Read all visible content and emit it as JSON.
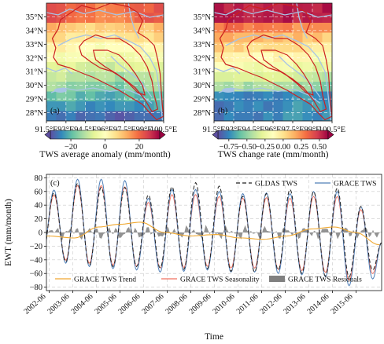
{
  "colors": {
    "gldas": "#222222",
    "grace": "#4f7fb8",
    "trend": "#f0a830",
    "seasonality": "#f07060",
    "residuals": "#808080",
    "boundary": "#cc2020",
    "river": "#a8c4e6",
    "grid": "#c8c8c8"
  },
  "chart_data": [
    {
      "type": "heatmap",
      "panel_label": "(a)",
      "x_ticks": [
        "91.5°E",
        "93°E",
        "94.5°E",
        "96°E",
        "97.5°E",
        "99°E",
        "100.5°E"
      ],
      "y_ticks": [
        "35°N",
        "34°N",
        "33°N",
        "32°N",
        "31°N",
        "30°N",
        "29°N",
        "28°N"
      ],
      "xlim": [
        91.5,
        100.5
      ],
      "ylim": [
        27.4,
        36.0
      ],
      "colormap": "Spectral_r",
      "colorbar": {
        "label": "TWS average anomaly (mm/month)",
        "ticks": [
          "−20",
          "0",
          "20"
        ],
        "range": [
          -32,
          32
        ],
        "extend": "both"
      }
    },
    {
      "type": "heatmap",
      "panel_label": "(b)",
      "x_ticks": [
        "91.5°E",
        "93°E",
        "94.5°E",
        "96°E",
        "97.5°E",
        "99°E",
        "100.5°E"
      ],
      "y_ticks": [
        "35°N",
        "34°N",
        "33°N",
        "32°N",
        "31°N",
        "30°N",
        "29°N",
        "28°N"
      ],
      "xlim": [
        91.5,
        100.5
      ],
      "ylim": [
        27.4,
        36.0
      ],
      "colormap": "Spectral_r",
      "colorbar": {
        "label": "TWS change rate (mm/month)",
        "ticks": [
          "−0.75",
          "−0.50",
          "−0.25",
          "0.00",
          "0.25",
          "0.50"
        ],
        "range": [
          -0.9,
          0.62
        ],
        "extend": "both"
      }
    },
    {
      "type": "line",
      "panel_label": "(c)",
      "xlabel": "Time",
      "ylabel": "EWT (mm/month)",
      "x_ticks": [
        "2002-06",
        "2003-06",
        "2004-06",
        "2005-06",
        "2006-06",
        "2007-06",
        "2008-06",
        "2009-06",
        "2010-06",
        "2011-06",
        "2012-06",
        "2013-06",
        "2014-06",
        "2015-06"
      ],
      "y_ticks": [
        -80,
        -60,
        -40,
        -20,
        0,
        20,
        40,
        60,
        80
      ],
      "xlim": [
        2002.3,
        2016.5
      ],
      "ylim": [
        -85,
        85
      ],
      "grid": true,
      "annual_peaks": {
        "years": [
          2002,
          2003,
          2004,
          2005,
          2006,
          2007,
          2008,
          2009,
          2010,
          2011,
          2012,
          2013,
          2014,
          2015
        ],
        "grace_peak": [
          62,
          78,
          78,
          76,
          50,
          63,
          63,
          60,
          57,
          58,
          57,
          60,
          60,
          38
        ],
        "grace_trough": [
          -40,
          -45,
          -50,
          -53,
          -55,
          -58,
          -57,
          -55,
          -58,
          -58,
          -60,
          -62,
          -65,
          -78
        ],
        "gldas_peak": [
          58,
          72,
          66,
          66,
          55,
          67,
          73,
          68,
          53,
          57,
          63,
          60,
          65,
          38
        ],
        "gldas_trough": [
          -38,
          -43,
          -48,
          -50,
          -50,
          -52,
          -54,
          -53,
          -57,
          -58,
          -55,
          -60,
          -64,
          -65
        ]
      },
      "trend": {
        "x": [
          2002.3,
          2003.5,
          2004.5,
          2005.4,
          2006.3,
          2007.3,
          2008.4,
          2009.5,
          2010.5,
          2011.5,
          2012.5,
          2013.5,
          2014.5,
          2015.4,
          2016.4
        ],
        "y": [
          -5,
          -8,
          8,
          12,
          15,
          0,
          -5,
          -3,
          -8,
          -10,
          -5,
          5,
          8,
          0,
          -18
        ]
      },
      "legend": [
        {
          "name": "GLDAS TWS",
          "style": "dashed",
          "color_key": "gldas"
        },
        {
          "name": "GRACE TWS",
          "style": "solid",
          "color_key": "grace"
        },
        {
          "name": "GRACE TWS Trend",
          "style": "solid",
          "color_key": "trend"
        },
        {
          "name": "GRACE TWS Seasonality",
          "style": "solid",
          "color_key": "seasonality"
        },
        {
          "name": "GRACE TWS Residuals",
          "style": "fill",
          "color_key": "residuals"
        }
      ]
    }
  ]
}
